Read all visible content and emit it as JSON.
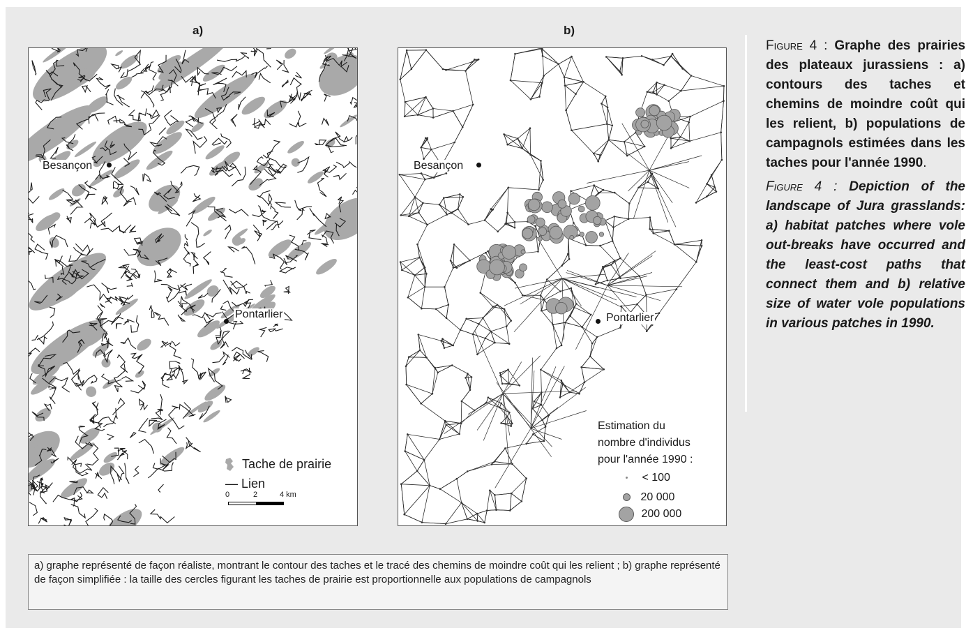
{
  "panels": {
    "a": {
      "label": "a)",
      "cities": {
        "besancon": "Besançon",
        "pontarlier": "Pontarlier"
      },
      "legend": {
        "patch": "Tache de prairie",
        "link": "— Lien",
        "scale": {
          "t0": "0",
          "t2": "2",
          "t4": "4 km"
        }
      }
    },
    "b": {
      "label": "b)",
      "cities": {
        "besancon": "Besançon",
        "pontarlier": "Pontarlier"
      },
      "legend": {
        "title_1": "Estimation du",
        "title_2": "nombre d'individus",
        "title_3": "pour l'année 1990 :",
        "items": [
          "< 100",
          "20 000",
          "200 000"
        ]
      }
    }
  },
  "caption": {
    "fr_prefix": "Figure 4 :",
    "fr_text": "Graphe des prairies des plateaux jurassiens : a) contours des taches et chemins de moindre coût qui les relient, b) populations de campagnols estimées dans les taches pour l'année 1990",
    "en_prefix": "Figure 4 :",
    "en_text": "Depiction of the landscape of Jura grasslands: a) habitat patches where vole out-breaks have occurred and the least-cost paths that connect them and b) relative size of water vole populations in various patches in 1990."
  },
  "note": "a) graphe représenté de façon réaliste, montrant le contour des taches et le tracé des chemins de moindre coût qui les relient ; b) graphe représenté de façon simplifiée : la taille des cercles figurant les taches de prairie est proportionnelle aux populations de campagnols",
  "colors": {
    "patch": "#a9a9a9",
    "link": "#1c1c1c",
    "circle_fill": "#a3a3a3",
    "circle_stroke": "#5a5a5a",
    "background": "#eaeaea"
  }
}
